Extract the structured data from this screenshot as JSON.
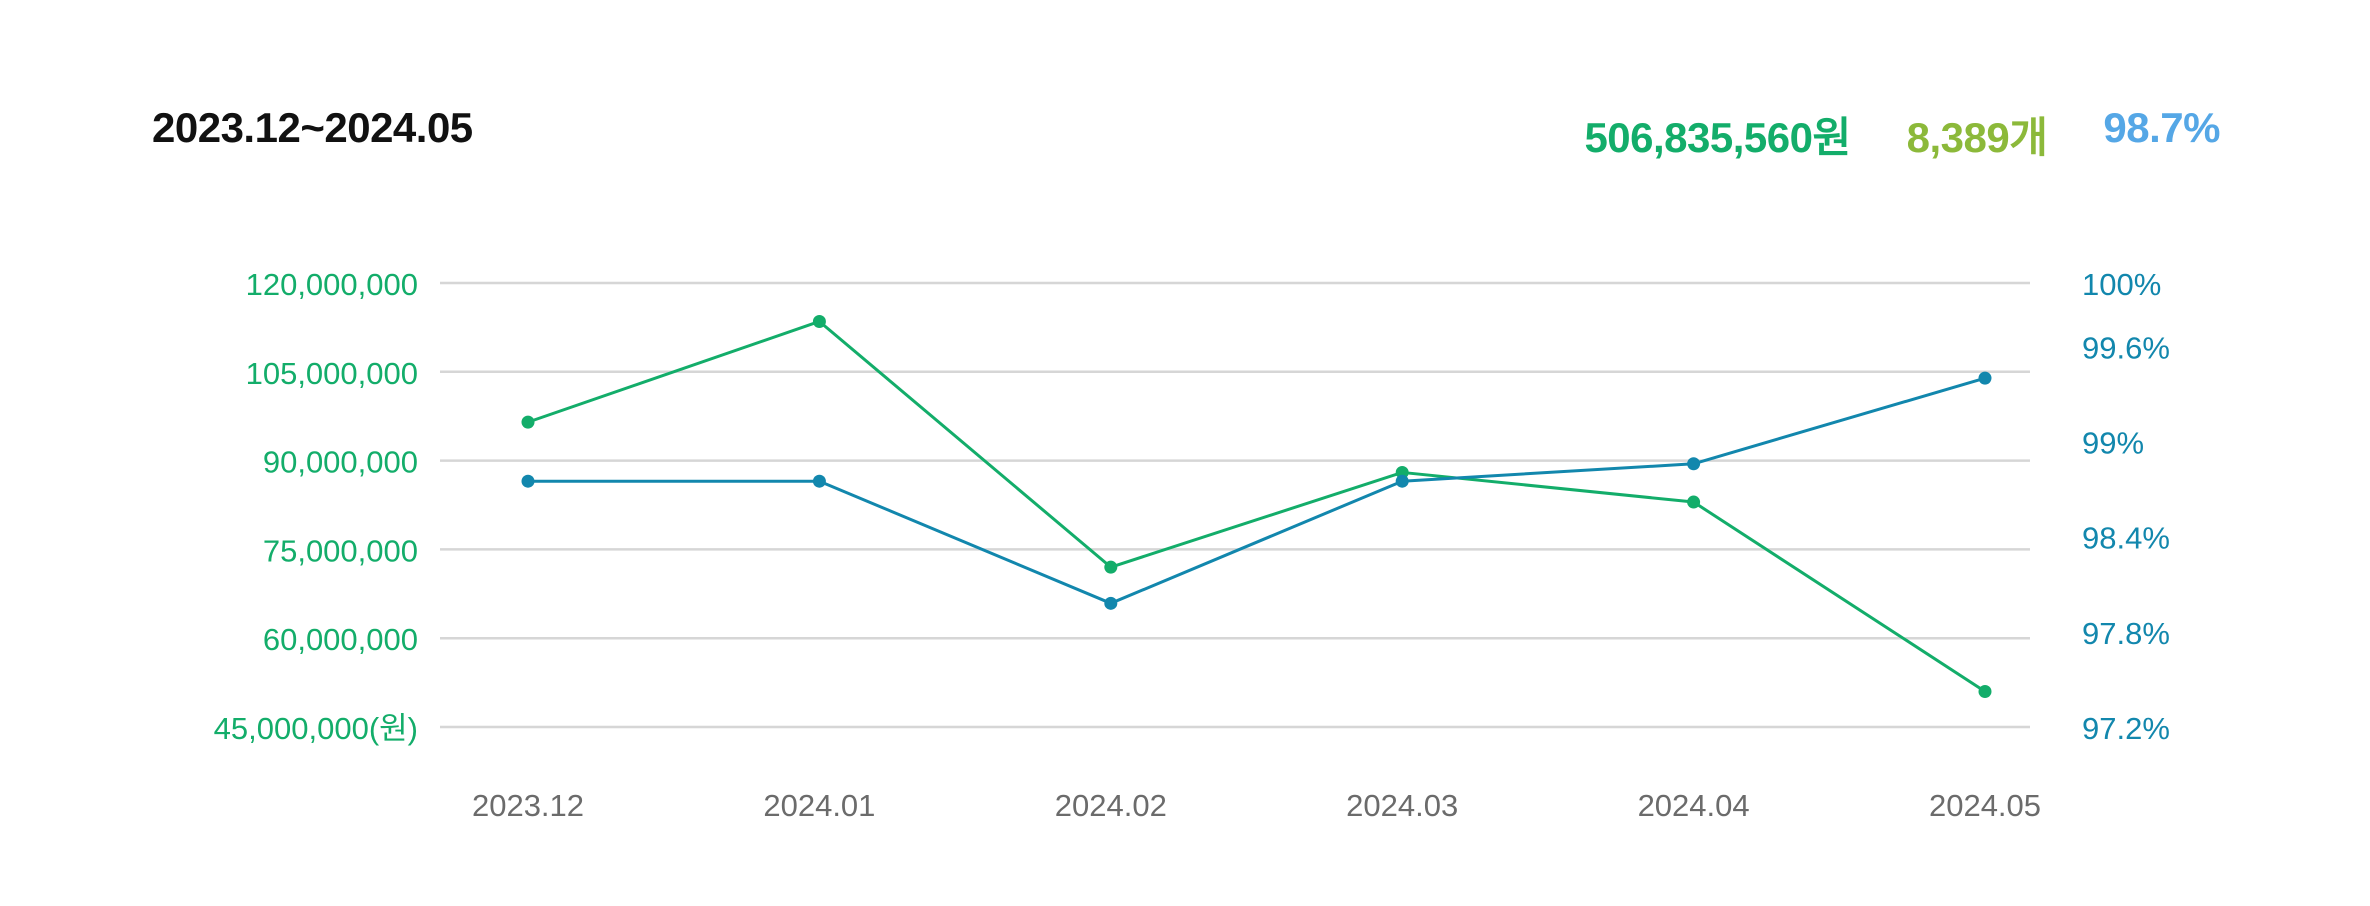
{
  "header": {
    "period": "2023.12~2024.05",
    "stats": [
      {
        "value": "506,835,560원",
        "color": "#13ad6a"
      },
      {
        "value": "8,389개",
        "color": "#8cb93a"
      },
      {
        "value": "98.7%",
        "color": "#55a7e6"
      }
    ]
  },
  "colors": {
    "amount_line": "#13ad6a",
    "rate_line": "#1287ad",
    "left_axis_text": "#13ad6a",
    "right_axis_text": "#1287ad",
    "x_axis_text": "#6b6b6b",
    "grid": "#d6d6d6"
  },
  "chart_data": {
    "type": "line",
    "categories": [
      "2023.12",
      "2024.01",
      "2024.02",
      "2024.03",
      "2024.04",
      "2024.05"
    ],
    "y_left": {
      "ticks": [
        45000000,
        60000000,
        75000000,
        90000000,
        105000000,
        120000000
      ],
      "tick_labels": [
        "45,000,000(원)",
        "60,000,000",
        "75,000,000",
        "90,000,000",
        "105,000,000",
        "120,000,000"
      ],
      "range": [
        45000000,
        120000000
      ]
    },
    "y_right": {
      "ticks": [
        97.2,
        97.8,
        98.4,
        99,
        99.6,
        100
      ],
      "tick_labels": [
        "97.2%",
        "97.8%",
        "98.4%",
        "99%",
        "99.6%",
        "100%"
      ],
      "range": [
        97.2,
        100
      ]
    },
    "series": [
      {
        "axis": "left",
        "color": "#13ad6a",
        "values": [
          96500000,
          113500000,
          72000000,
          88000000,
          83000000,
          51000000
        ]
      },
      {
        "axis": "right",
        "color": "#1287ad",
        "values": [
          98.75,
          98.75,
          97.98,
          98.75,
          98.86,
          99.4
        ]
      }
    ],
    "grid": true
  }
}
